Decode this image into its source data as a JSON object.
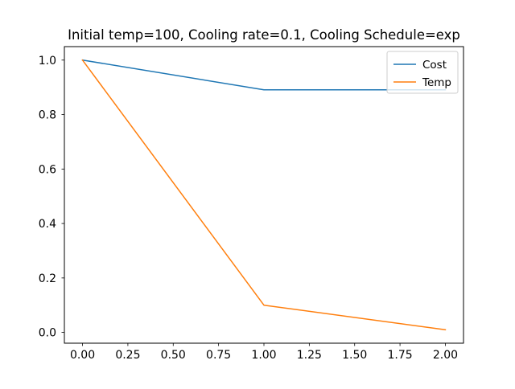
{
  "chart_data": {
    "type": "line",
    "title": "Initial temp=100, Cooling rate=0.1, Cooling Schedule=exp",
    "xlabel": "",
    "ylabel": "",
    "x": [
      0,
      1,
      2
    ],
    "xlim": [
      -0.1,
      2.1
    ],
    "ylim": [
      -0.0395,
      1.0495
    ],
    "xticks": [
      0.0,
      0.25,
      0.5,
      0.75,
      1.0,
      1.25,
      1.5,
      1.75,
      2.0
    ],
    "xtick_labels": [
      "0.00",
      "0.25",
      "0.50",
      "0.75",
      "1.00",
      "1.25",
      "1.50",
      "1.75",
      "2.00"
    ],
    "yticks": [
      0.0,
      0.2,
      0.4,
      0.6,
      0.8,
      1.0
    ],
    "ytick_labels": [
      "0.0",
      "0.2",
      "0.4",
      "0.6",
      "0.8",
      "1.0"
    ],
    "grid": false,
    "legend_position": "top-right",
    "series": [
      {
        "name": "Cost",
        "color": "#1f77b4",
        "values": [
          1.0,
          0.891,
          0.891
        ]
      },
      {
        "name": "Temp",
        "color": "#ff7f0e",
        "values": [
          1.0,
          0.1,
          0.01
        ]
      }
    ]
  }
}
